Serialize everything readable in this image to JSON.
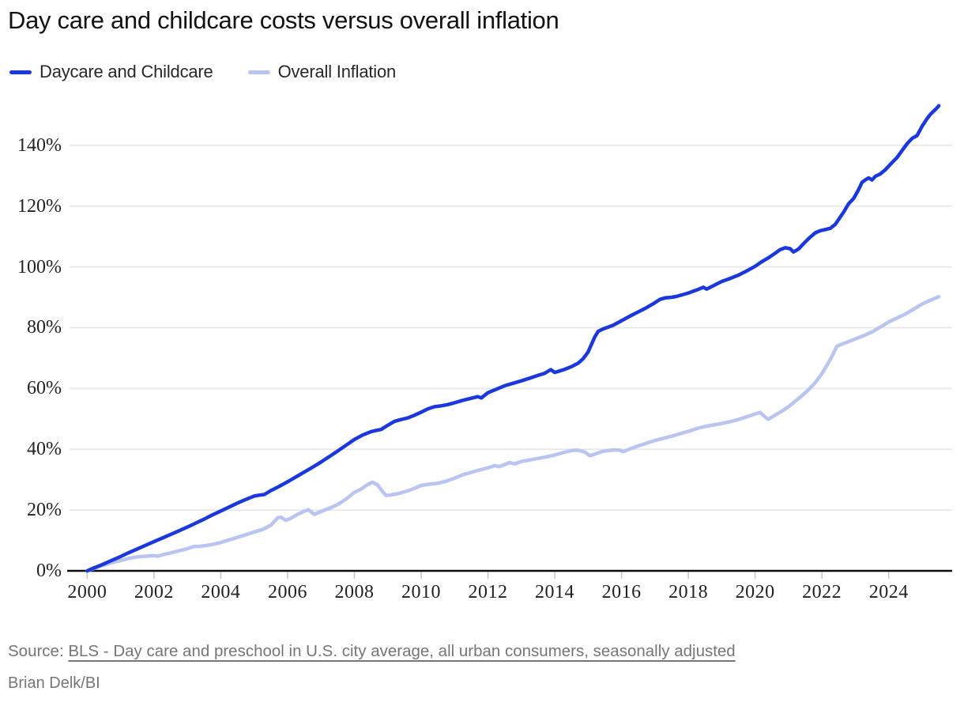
{
  "title": "Day care and childcare costs versus overall inflation",
  "legend": {
    "items": [
      {
        "label": "Daycare and Childcare",
        "color": "#1b38dd"
      },
      {
        "label": "Overall Inflation",
        "color": "#b9c4f1"
      }
    ]
  },
  "footer": {
    "source_prefix": "Source:",
    "source_link": "BLS - Day care and preschool in U.S. city average, all urban consumers, seasonally adjusted",
    "byline": "Brian Delk/BI"
  },
  "colors": {
    "daycare_line": "#1b38dd",
    "inflation_line": "#b9c4f1",
    "gridline": "#e8e8e8",
    "axis": "#0c0c0c",
    "tick_mark": "#c8c8c8",
    "tick_text": "#212126",
    "muted_text": "#76767a"
  },
  "chart_data": {
    "type": "line",
    "title": "Day care and childcare costs versus overall inflation",
    "xlabel": "",
    "ylabel": "",
    "x_unit": "year",
    "y_unit": "percent change since 2000",
    "x_ticks": [
      2000,
      2002,
      2004,
      2006,
      2008,
      2010,
      2012,
      2014,
      2016,
      2018,
      2020,
      2022,
      2024
    ],
    "y_ticks": [
      0,
      20,
      40,
      60,
      80,
      100,
      120,
      140
    ],
    "y_tick_suffix": "%",
    "xlim": [
      1999.4,
      2025.9
    ],
    "ylim": [
      0,
      154
    ],
    "grid": "horizontal",
    "legend_position": "top-left",
    "series": [
      {
        "id": "daycare",
        "name": "Daycare and Childcare",
        "color": "#1b38dd",
        "points": [
          [
            2000.0,
            0
          ],
          [
            2000.17,
            0.8
          ],
          [
            2000.33,
            1.5
          ],
          [
            2000.5,
            2.3
          ],
          [
            2000.75,
            3.5
          ],
          [
            2001.0,
            4.7
          ],
          [
            2001.25,
            6.0
          ],
          [
            2001.5,
            7.2
          ],
          [
            2001.75,
            8.4
          ],
          [
            2002.0,
            9.6
          ],
          [
            2002.25,
            10.8
          ],
          [
            2002.5,
            12.0
          ],
          [
            2002.75,
            13.2
          ],
          [
            2003.0,
            14.4
          ],
          [
            2003.25,
            15.7
          ],
          [
            2003.5,
            17.0
          ],
          [
            2003.75,
            18.4
          ],
          [
            2004.0,
            19.7
          ],
          [
            2004.25,
            21.0
          ],
          [
            2004.5,
            22.3
          ],
          [
            2004.75,
            23.5
          ],
          [
            2005.0,
            24.6
          ],
          [
            2005.15,
            24.9
          ],
          [
            2005.3,
            25.1
          ],
          [
            2005.5,
            26.4
          ],
          [
            2005.75,
            27.8
          ],
          [
            2006.0,
            29.3
          ],
          [
            2006.25,
            30.9
          ],
          [
            2006.5,
            32.5
          ],
          [
            2006.75,
            34.1
          ],
          [
            2007.0,
            35.8
          ],
          [
            2007.25,
            37.6
          ],
          [
            2007.5,
            39.4
          ],
          [
            2007.75,
            41.3
          ],
          [
            2008.0,
            43.2
          ],
          [
            2008.25,
            44.7
          ],
          [
            2008.5,
            45.8
          ],
          [
            2008.65,
            46.2
          ],
          [
            2008.8,
            46.5
          ],
          [
            2009.0,
            47.9
          ],
          [
            2009.2,
            49.2
          ],
          [
            2009.4,
            49.8
          ],
          [
            2009.6,
            50.3
          ],
          [
            2009.8,
            51.2
          ],
          [
            2010.0,
            52.2
          ],
          [
            2010.2,
            53.3
          ],
          [
            2010.4,
            54.0
          ],
          [
            2010.6,
            54.3
          ],
          [
            2010.8,
            54.7
          ],
          [
            2011.0,
            55.3
          ],
          [
            2011.25,
            56.1
          ],
          [
            2011.5,
            56.8
          ],
          [
            2011.7,
            57.3
          ],
          [
            2011.8,
            56.9
          ],
          [
            2012.0,
            58.6
          ],
          [
            2012.3,
            60.0
          ],
          [
            2012.5,
            60.9
          ],
          [
            2012.75,
            61.7
          ],
          [
            2013.0,
            62.5
          ],
          [
            2013.25,
            63.4
          ],
          [
            2013.5,
            64.3
          ],
          [
            2013.7,
            65.0
          ],
          [
            2013.88,
            66.2
          ],
          [
            2014.0,
            65.3
          ],
          [
            2014.1,
            65.6
          ],
          [
            2014.3,
            66.3
          ],
          [
            2014.5,
            67.2
          ],
          [
            2014.7,
            68.3
          ],
          [
            2014.85,
            69.8
          ],
          [
            2015.0,
            72.0
          ],
          [
            2015.1,
            74.5
          ],
          [
            2015.2,
            77.0
          ],
          [
            2015.3,
            78.8
          ],
          [
            2015.45,
            79.6
          ],
          [
            2015.6,
            80.2
          ],
          [
            2015.75,
            80.8
          ],
          [
            2016.0,
            82.3
          ],
          [
            2016.25,
            83.8
          ],
          [
            2016.5,
            85.2
          ],
          [
            2016.75,
            86.6
          ],
          [
            2017.0,
            88.2
          ],
          [
            2017.15,
            89.3
          ],
          [
            2017.3,
            89.8
          ],
          [
            2017.5,
            90.0
          ],
          [
            2017.65,
            90.3
          ],
          [
            2018.0,
            91.4
          ],
          [
            2018.25,
            92.4
          ],
          [
            2018.45,
            93.3
          ],
          [
            2018.55,
            92.7
          ],
          [
            2018.75,
            93.8
          ],
          [
            2019.0,
            95.2
          ],
          [
            2019.25,
            96.2
          ],
          [
            2019.5,
            97.3
          ],
          [
            2019.75,
            98.7
          ],
          [
            2020.0,
            100.2
          ],
          [
            2020.2,
            101.7
          ],
          [
            2020.4,
            103.0
          ],
          [
            2020.6,
            104.5
          ],
          [
            2020.75,
            105.7
          ],
          [
            2020.9,
            106.3
          ],
          [
            2021.05,
            106.0
          ],
          [
            2021.15,
            104.9
          ],
          [
            2021.3,
            105.9
          ],
          [
            2021.5,
            108.2
          ],
          [
            2021.65,
            109.8
          ],
          [
            2021.8,
            111.2
          ],
          [
            2021.95,
            111.9
          ],
          [
            2022.1,
            112.3
          ],
          [
            2022.25,
            112.7
          ],
          [
            2022.4,
            114.0
          ],
          [
            2022.5,
            115.6
          ],
          [
            2022.65,
            118.0
          ],
          [
            2022.8,
            120.8
          ],
          [
            2022.95,
            122.5
          ],
          [
            2023.1,
            125.5
          ],
          [
            2023.2,
            127.8
          ],
          [
            2023.3,
            128.6
          ],
          [
            2023.4,
            129.3
          ],
          [
            2023.5,
            128.6
          ],
          [
            2023.6,
            129.8
          ],
          [
            2023.75,
            130.6
          ],
          [
            2023.9,
            132.0
          ],
          [
            2024.1,
            134.3
          ],
          [
            2024.25,
            136.0
          ],
          [
            2024.4,
            138.3
          ],
          [
            2024.55,
            140.5
          ],
          [
            2024.7,
            142.3
          ],
          [
            2024.85,
            143.2
          ],
          [
            2025.0,
            146.3
          ],
          [
            2025.15,
            148.8
          ],
          [
            2025.25,
            150.2
          ],
          [
            2025.35,
            151.3
          ],
          [
            2025.42,
            152.0
          ],
          [
            2025.5,
            153.0
          ]
        ]
      },
      {
        "id": "inflation",
        "name": "Overall Inflation",
        "color": "#b9c4f1",
        "points": [
          [
            2000.0,
            0
          ],
          [
            2000.25,
            1.0
          ],
          [
            2000.5,
            1.9
          ],
          [
            2000.75,
            2.7
          ],
          [
            2001.0,
            3.4
          ],
          [
            2001.25,
            4.1
          ],
          [
            2001.5,
            4.6
          ],
          [
            2001.75,
            4.8
          ],
          [
            2002.0,
            5.0
          ],
          [
            2002.1,
            4.8
          ],
          [
            2002.3,
            5.4
          ],
          [
            2002.5,
            5.9
          ],
          [
            2002.75,
            6.6
          ],
          [
            2003.0,
            7.3
          ],
          [
            2003.2,
            8.0
          ],
          [
            2003.4,
            8.1
          ],
          [
            2003.6,
            8.4
          ],
          [
            2003.8,
            8.8
          ],
          [
            2004.0,
            9.3
          ],
          [
            2004.25,
            10.2
          ],
          [
            2004.5,
            11.0
          ],
          [
            2004.75,
            11.9
          ],
          [
            2005.0,
            12.8
          ],
          [
            2005.25,
            13.6
          ],
          [
            2005.5,
            15.0
          ],
          [
            2005.7,
            17.4
          ],
          [
            2005.8,
            17.7
          ],
          [
            2005.95,
            16.6
          ],
          [
            2006.1,
            17.3
          ],
          [
            2006.3,
            18.6
          ],
          [
            2006.5,
            19.6
          ],
          [
            2006.62,
            20.1
          ],
          [
            2006.8,
            18.6
          ],
          [
            2007.0,
            19.5
          ],
          [
            2007.25,
            20.6
          ],
          [
            2007.5,
            21.8
          ],
          [
            2007.75,
            23.6
          ],
          [
            2008.0,
            25.8
          ],
          [
            2008.2,
            26.9
          ],
          [
            2008.4,
            28.4
          ],
          [
            2008.55,
            29.2
          ],
          [
            2008.7,
            28.2
          ],
          [
            2008.85,
            26.0
          ],
          [
            2008.95,
            24.8
          ],
          [
            2009.1,
            25.0
          ],
          [
            2009.3,
            25.4
          ],
          [
            2009.5,
            26.0
          ],
          [
            2009.75,
            26.9
          ],
          [
            2010.0,
            28.1
          ],
          [
            2010.25,
            28.5
          ],
          [
            2010.5,
            28.8
          ],
          [
            2010.75,
            29.5
          ],
          [
            2011.0,
            30.5
          ],
          [
            2011.25,
            31.6
          ],
          [
            2011.5,
            32.4
          ],
          [
            2011.75,
            33.2
          ],
          [
            2012.0,
            33.9
          ],
          [
            2012.2,
            34.6
          ],
          [
            2012.35,
            34.3
          ],
          [
            2012.5,
            35.0
          ],
          [
            2012.65,
            35.6
          ],
          [
            2012.8,
            35.2
          ],
          [
            2013.0,
            36.0
          ],
          [
            2013.25,
            36.5
          ],
          [
            2013.5,
            37.0
          ],
          [
            2013.75,
            37.5
          ],
          [
            2014.0,
            38.1
          ],
          [
            2014.25,
            38.9
          ],
          [
            2014.5,
            39.6
          ],
          [
            2014.7,
            39.7
          ],
          [
            2014.9,
            39.1
          ],
          [
            2015.05,
            37.9
          ],
          [
            2015.2,
            38.4
          ],
          [
            2015.4,
            39.2
          ],
          [
            2015.6,
            39.6
          ],
          [
            2015.8,
            39.8
          ],
          [
            2015.95,
            39.7
          ],
          [
            2016.05,
            39.2
          ],
          [
            2016.25,
            40.1
          ],
          [
            2016.5,
            41.1
          ],
          [
            2016.75,
            42.0
          ],
          [
            2017.0,
            42.9
          ],
          [
            2017.25,
            43.6
          ],
          [
            2017.5,
            44.3
          ],
          [
            2017.75,
            45.1
          ],
          [
            2018.0,
            45.9
          ],
          [
            2018.25,
            46.8
          ],
          [
            2018.5,
            47.5
          ],
          [
            2018.75,
            48.0
          ],
          [
            2019.0,
            48.5
          ],
          [
            2019.25,
            49.1
          ],
          [
            2019.5,
            49.8
          ],
          [
            2019.75,
            50.7
          ],
          [
            2020.0,
            51.6
          ],
          [
            2020.15,
            52.1
          ],
          [
            2020.3,
            50.6
          ],
          [
            2020.4,
            49.9
          ],
          [
            2020.55,
            50.9
          ],
          [
            2020.7,
            51.9
          ],
          [
            2020.85,
            52.9
          ],
          [
            2021.0,
            54.0
          ],
          [
            2021.2,
            55.8
          ],
          [
            2021.4,
            57.6
          ],
          [
            2021.6,
            59.6
          ],
          [
            2021.8,
            61.9
          ],
          [
            2022.0,
            64.9
          ],
          [
            2022.15,
            67.6
          ],
          [
            2022.3,
            70.5
          ],
          [
            2022.45,
            73.9
          ],
          [
            2022.6,
            74.6
          ],
          [
            2022.75,
            75.2
          ],
          [
            2023.0,
            76.3
          ],
          [
            2023.25,
            77.4
          ],
          [
            2023.5,
            78.6
          ],
          [
            2023.75,
            80.2
          ],
          [
            2024.0,
            81.9
          ],
          [
            2024.25,
            83.2
          ],
          [
            2024.5,
            84.5
          ],
          [
            2024.75,
            86.1
          ],
          [
            2025.0,
            87.8
          ],
          [
            2025.2,
            88.8
          ],
          [
            2025.35,
            89.5
          ],
          [
            2025.5,
            90.2
          ]
        ]
      }
    ]
  }
}
